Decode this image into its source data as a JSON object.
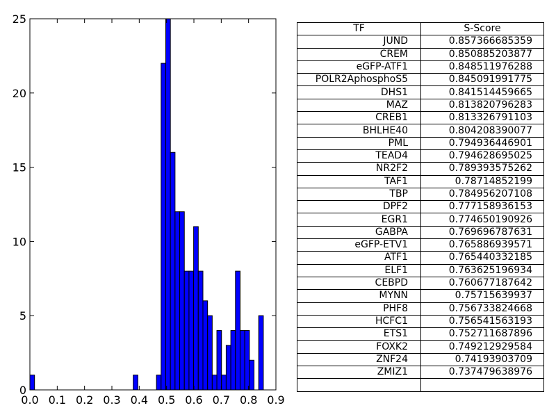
{
  "chart_data": [
    {
      "type": "bar",
      "xlim": [
        0.0,
        0.9
      ],
      "ylim": [
        0,
        25
      ],
      "bin_width": 0.017,
      "bar_color": "#0000ff",
      "x_ticks": [
        "0.0",
        "0.1",
        "0.2",
        "0.3",
        "0.4",
        "0.5",
        "0.6",
        "0.7",
        "0.8",
        "0.9"
      ],
      "y_ticks": [
        "0",
        "5",
        "10",
        "15",
        "20",
        "25"
      ],
      "bins": [
        {
          "x": 0.0,
          "count": 1
        },
        {
          "x": 0.378,
          "count": 1
        },
        {
          "x": 0.463,
          "count": 1
        },
        {
          "x": 0.48,
          "count": 22
        },
        {
          "x": 0.497,
          "count": 25
        },
        {
          "x": 0.514,
          "count": 16
        },
        {
          "x": 0.531,
          "count": 12
        },
        {
          "x": 0.548,
          "count": 12
        },
        {
          "x": 0.565,
          "count": 8
        },
        {
          "x": 0.582,
          "count": 8
        },
        {
          "x": 0.599,
          "count": 11
        },
        {
          "x": 0.616,
          "count": 8
        },
        {
          "x": 0.633,
          "count": 6
        },
        {
          "x": 0.65,
          "count": 5
        },
        {
          "x": 0.667,
          "count": 1
        },
        {
          "x": 0.684,
          "count": 4
        },
        {
          "x": 0.701,
          "count": 1
        },
        {
          "x": 0.718,
          "count": 3
        },
        {
          "x": 0.735,
          "count": 4
        },
        {
          "x": 0.752,
          "count": 8
        },
        {
          "x": 0.769,
          "count": 4
        },
        {
          "x": 0.786,
          "count": 4
        },
        {
          "x": 0.803,
          "count": 2
        },
        {
          "x": 0.837,
          "count": 5
        }
      ]
    },
    {
      "type": "table",
      "columns": [
        "TF",
        "S-Score"
      ],
      "rows": [
        [
          "JUND",
          "0.857366685359"
        ],
        [
          "CREM",
          "0.850885203877"
        ],
        [
          "eGFP-ATF1",
          "0.848511976288"
        ],
        [
          "POLR2AphosphoS5",
          "0.845091991775"
        ],
        [
          "DHS1",
          "0.841514459665"
        ],
        [
          "MAZ",
          "0.813820796283"
        ],
        [
          "CREB1",
          "0.813326791103"
        ],
        [
          "BHLHE40",
          "0.804208390077"
        ],
        [
          "PML",
          "0.794936446901"
        ],
        [
          "TEAD4",
          "0.794628695025"
        ],
        [
          "NR2F2",
          "0.789393575262"
        ],
        [
          "TAF1",
          "0.78714852199"
        ],
        [
          "TBP",
          "0.784956207108"
        ],
        [
          "DPF2",
          "0.777158936153"
        ],
        [
          "EGR1",
          "0.774650190926"
        ],
        [
          "GABPA",
          "0.769696787631"
        ],
        [
          "eGFP-ETV1",
          "0.765886939571"
        ],
        [
          "ATF1",
          "0.765440332185"
        ],
        [
          "ELF1",
          "0.763625196934"
        ],
        [
          "CEBPD",
          "0.760677187642"
        ],
        [
          "MYNN",
          "0.75715639937"
        ],
        [
          "PHF8",
          "0.756733824668"
        ],
        [
          "HCFC1",
          "0.756541563193"
        ],
        [
          "ETS1",
          "0.752711687896"
        ],
        [
          "FOXK2",
          "0.749212929584"
        ],
        [
          "ZNF24",
          "0.74193903709"
        ],
        [
          "ZMIZ1",
          "0.737479638976"
        ],
        [
          "",
          ""
        ]
      ]
    }
  ]
}
